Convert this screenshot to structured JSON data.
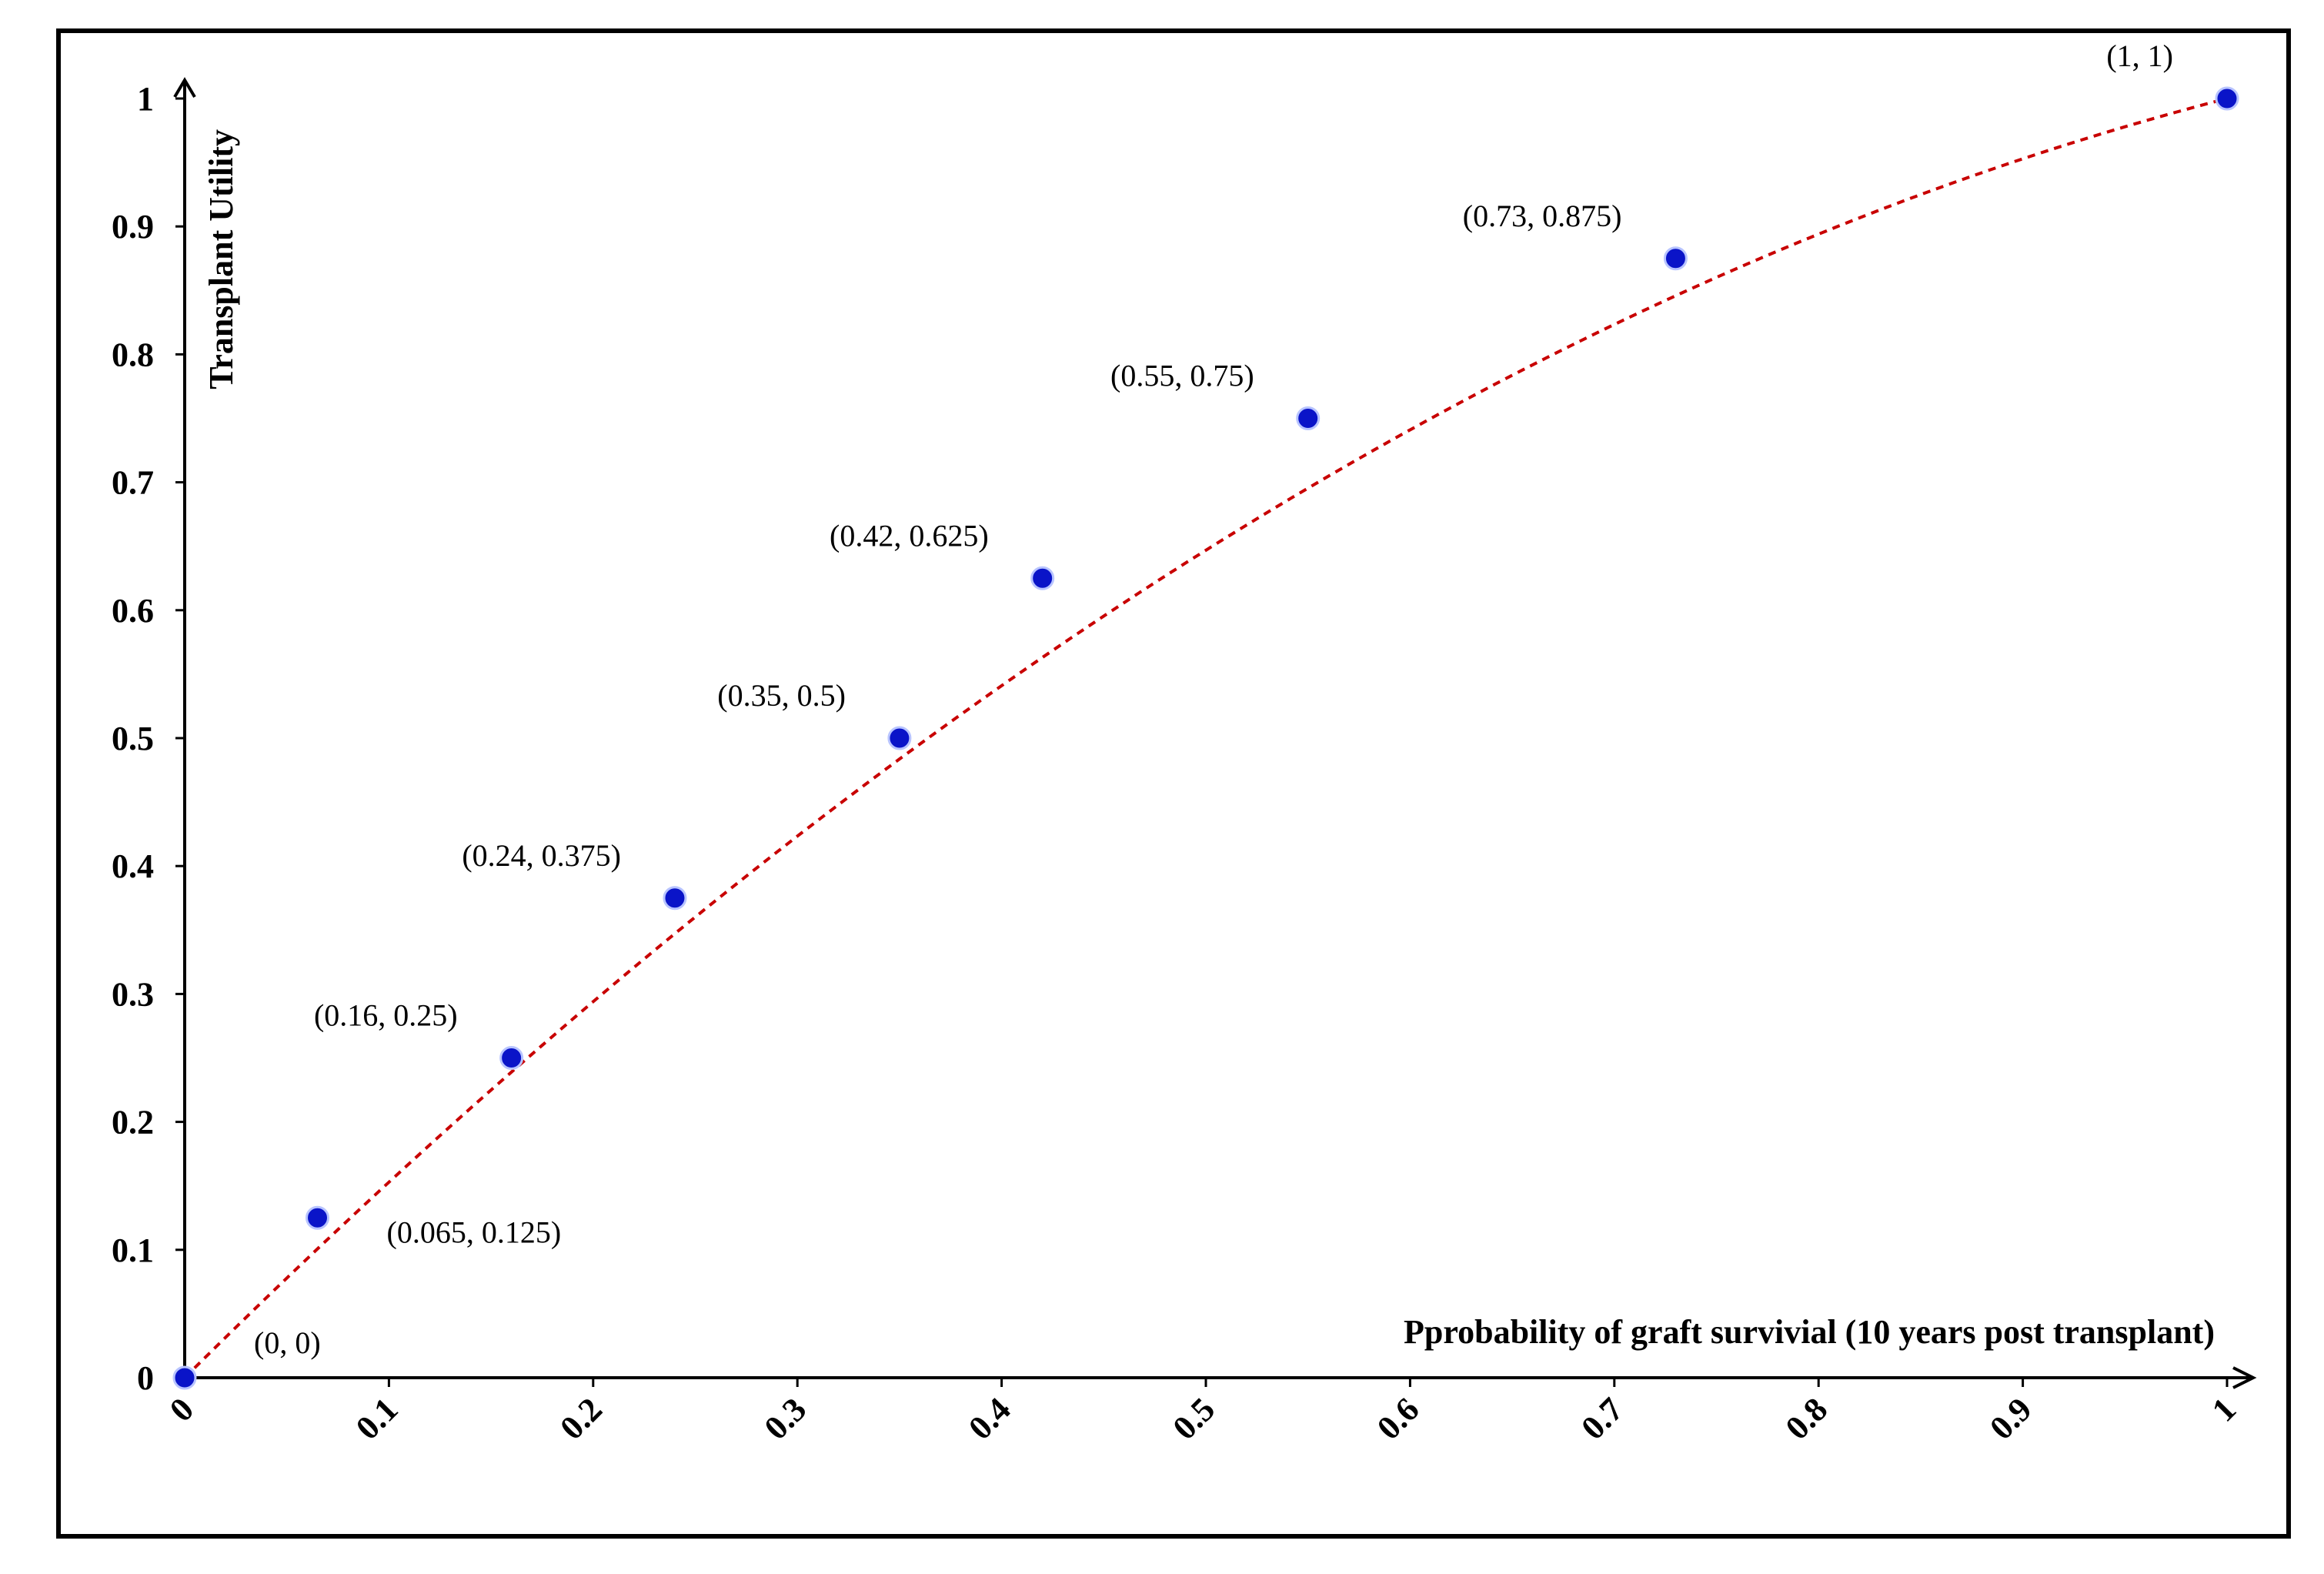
{
  "chart_data": {
    "type": "scatter",
    "title": "",
    "xlabel": "Pprobability of graft survivial (10 years post transplant)",
    "ylabel": "Transplant Utility",
    "xlim": [
      0,
      1
    ],
    "ylim": [
      0,
      1
    ],
    "grid": false,
    "x_ticks": [
      "0",
      "0.1",
      "0.2",
      "0.3",
      "0.4",
      "0.5",
      "0.6",
      "0.7",
      "0.8",
      "0.9",
      "1"
    ],
    "y_ticks": [
      "0",
      "0.1",
      "0.2",
      "0.3",
      "0.4",
      "0.5",
      "0.6",
      "0.7",
      "0.8",
      "0.9",
      "1"
    ],
    "points": [
      {
        "x": 0,
        "y": 0,
        "label": "(0, 0)",
        "label_anchor": "below-right"
      },
      {
        "x": 0.065,
        "y": 0.125,
        "label": "(0.065, 0.125)",
        "label_anchor": "below-right"
      },
      {
        "x": 0.16,
        "y": 0.25,
        "label": "(0.16, 0.25)",
        "label_anchor": "above-left"
      },
      {
        "x": 0.24,
        "y": 0.375,
        "label": "(0.24, 0.375)",
        "label_anchor": "above-left"
      },
      {
        "x": 0.35,
        "y": 0.5,
        "label": "(0.35, 0.5)",
        "label_anchor": "above-left"
      },
      {
        "x": 0.42,
        "y": 0.625,
        "label": "(0.42, 0.625)",
        "label_anchor": "above-left"
      },
      {
        "x": 0.55,
        "y": 0.75,
        "label": "(0.55, 0.75)",
        "label_anchor": "above-left"
      },
      {
        "x": 0.73,
        "y": 0.875,
        "label": "(0.73, 0.875)",
        "label_anchor": "above-left"
      },
      {
        "x": 1,
        "y": 1,
        "label": "(1, 1)",
        "label_anchor": "above-left"
      }
    ],
    "trendline": {
      "style": "dashed",
      "type": "polynomial",
      "coefficients": [
        0,
        1.5875,
        -0.5875
      ]
    },
    "colors": {
      "point": "#0a14c8",
      "trendline": "#c80000",
      "axis": "#000000",
      "frame": "#000000"
    }
  }
}
